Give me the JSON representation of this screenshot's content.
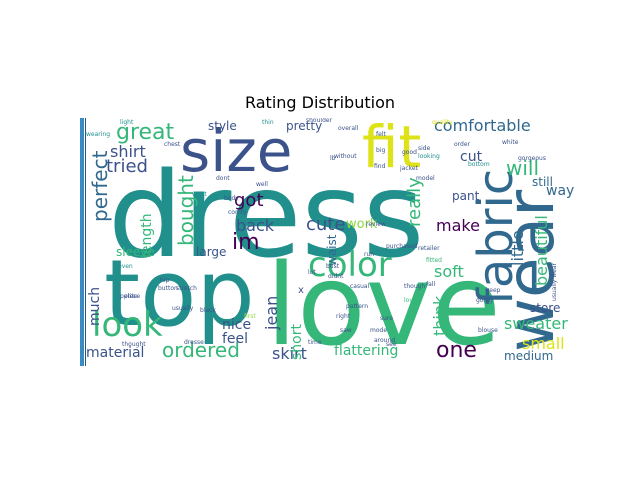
{
  "title": "Rating Distribution",
  "palette": {
    "teal": "#21908d",
    "green": "#35b779",
    "yellow": "#dde318",
    "purple": "#440154",
    "indigo": "#3b528b",
    "slate": "#31688e",
    "lime": "#90d743",
    "blue": "#2c728e"
  },
  "words": [
    {
      "t": "dress",
      "c": "teal"
    },
    {
      "t": "love",
      "c": "green"
    },
    {
      "t": "top",
      "c": "teal"
    },
    {
      "t": "size",
      "c": "indigo"
    },
    {
      "t": "fit",
      "c": "yellow"
    },
    {
      "t": "wear",
      "c": "slate"
    },
    {
      "t": "fabric",
      "c": "slate"
    },
    {
      "t": "color",
      "c": "green"
    },
    {
      "t": "look",
      "c": "green"
    },
    {
      "t": "great",
      "c": "green"
    },
    {
      "t": "ordered",
      "c": "green"
    },
    {
      "t": "comfortable",
      "c": "slate"
    },
    {
      "t": "perfect",
      "c": "slate"
    },
    {
      "t": "shirt",
      "c": "indigo"
    },
    {
      "t": "tried",
      "c": "indigo"
    },
    {
      "t": "bought",
      "c": "green"
    },
    {
      "t": "im",
      "c": "purple"
    },
    {
      "t": "got",
      "c": "purple"
    },
    {
      "t": "back",
      "c": "indigo"
    },
    {
      "t": "cute",
      "c": "indigo"
    },
    {
      "t": "work",
      "c": "lime"
    },
    {
      "t": "really",
      "c": "green"
    },
    {
      "t": "little",
      "c": "slate"
    },
    {
      "t": "beautiful",
      "c": "green"
    },
    {
      "t": "will",
      "c": "green"
    },
    {
      "t": "way",
      "c": "slate"
    },
    {
      "t": "cut",
      "c": "indigo"
    },
    {
      "t": "make",
      "c": "purple"
    },
    {
      "t": "soft",
      "c": "green"
    },
    {
      "t": "pant",
      "c": "indigo"
    },
    {
      "t": "think",
      "c": "green"
    },
    {
      "t": "sweater",
      "c": "green"
    },
    {
      "t": "small",
      "c": "yellow"
    },
    {
      "t": "store",
      "c": "indigo"
    },
    {
      "t": "still",
      "c": "slate"
    },
    {
      "t": "one",
      "c": "purple"
    },
    {
      "t": "medium",
      "c": "slate"
    },
    {
      "t": "flattering",
      "c": "green"
    },
    {
      "t": "skirt",
      "c": "indigo"
    },
    {
      "t": "material",
      "c": "indigo"
    },
    {
      "t": "nice",
      "c": "indigo"
    },
    {
      "t": "feel",
      "c": "indigo"
    },
    {
      "t": "jean",
      "c": "indigo"
    },
    {
      "t": "short",
      "c": "green"
    },
    {
      "t": "waist",
      "c": "slate"
    },
    {
      "t": "much",
      "c": "indigo"
    },
    {
      "t": "sleeve",
      "c": "green"
    },
    {
      "t": "large",
      "c": "indigo"
    },
    {
      "t": "length",
      "c": "green"
    },
    {
      "t": "style",
      "c": "indigo"
    },
    {
      "t": "pretty",
      "c": "indigo"
    },
    {
      "t": "light",
      "c": "teal"
    },
    {
      "t": "wearing",
      "c": "teal"
    },
    {
      "t": "chest",
      "c": "indigo"
    },
    {
      "t": "model",
      "c": "indigo"
    },
    {
      "t": "quality",
      "c": "yellow"
    },
    {
      "t": "shoulder",
      "c": "indigo"
    },
    {
      "t": "overall",
      "c": "indigo"
    },
    {
      "t": "without",
      "c": "indigo"
    },
    {
      "t": "find",
      "c": "indigo"
    },
    {
      "t": "good",
      "c": "indigo"
    },
    {
      "t": "jacket",
      "c": "indigo"
    },
    {
      "t": "looking",
      "c": "teal"
    },
    {
      "t": "bottom",
      "c": "teal"
    },
    {
      "t": "white",
      "c": "indigo"
    },
    {
      "t": "gorgeous",
      "c": "indigo"
    },
    {
      "t": "order",
      "c": "indigo"
    },
    {
      "t": "side",
      "c": "indigo"
    },
    {
      "t": "big",
      "c": "indigo"
    },
    {
      "t": "felt",
      "c": "indigo"
    },
    {
      "t": "thin",
      "c": "teal"
    },
    {
      "t": "want",
      "c": "teal"
    },
    {
      "t": "dont",
      "c": "indigo"
    },
    {
      "t": "well",
      "c": "indigo"
    },
    {
      "t": "body",
      "c": "indigo"
    },
    {
      "t": "comfy",
      "c": "indigo"
    },
    {
      "t": "even",
      "c": "teal"
    },
    {
      "t": "lot",
      "c": "indigo"
    },
    {
      "t": "bust",
      "c": "indigo"
    },
    {
      "t": "didnt",
      "c": "indigo"
    },
    {
      "t": "run",
      "c": "indigo"
    },
    {
      "t": "casual",
      "c": "indigo"
    },
    {
      "t": "pattern",
      "c": "indigo"
    },
    {
      "t": "right",
      "c": "indigo"
    },
    {
      "t": "sure",
      "c": "indigo"
    },
    {
      "t": "mode",
      "c": "indigo"
    },
    {
      "t": "around",
      "c": "indigo"
    },
    {
      "t": "saw",
      "c": "indigo"
    },
    {
      "t": "see",
      "c": "indigo"
    },
    {
      "t": "though",
      "c": "indigo"
    },
    {
      "t": "loved",
      "c": "green"
    },
    {
      "t": "fall",
      "c": "indigo"
    },
    {
      "t": "blouse",
      "c": "indigo"
    },
    {
      "t": "going",
      "c": "indigo"
    },
    {
      "t": "petite",
      "c": "indigo"
    },
    {
      "t": "piece",
      "c": "indigo"
    },
    {
      "t": "thought",
      "c": "indigo"
    },
    {
      "t": "button",
      "c": "indigo"
    },
    {
      "t": "stretch",
      "c": "indigo"
    },
    {
      "t": "usually",
      "c": "indigo"
    },
    {
      "t": "dresse",
      "c": "indigo"
    },
    {
      "t": "time",
      "c": "indigo"
    },
    {
      "t": "hip",
      "c": "indigo"
    },
    {
      "t": "black",
      "c": "indigo"
    },
    {
      "t": "review",
      "c": "indigo"
    },
    {
      "t": "retailer",
      "c": "indigo"
    },
    {
      "t": "fitted",
      "c": "green"
    },
    {
      "t": "purchased",
      "c": "indigo"
    },
    {
      "t": "first",
      "c": "lime"
    },
    {
      "t": "x",
      "c": "indigo"
    },
    {
      "t": "lb",
      "c": "indigo"
    },
    {
      "t": "keep",
      "c": "indigo"
    },
    {
      "t": "usually wear",
      "c": "indigo"
    }
  ]
}
